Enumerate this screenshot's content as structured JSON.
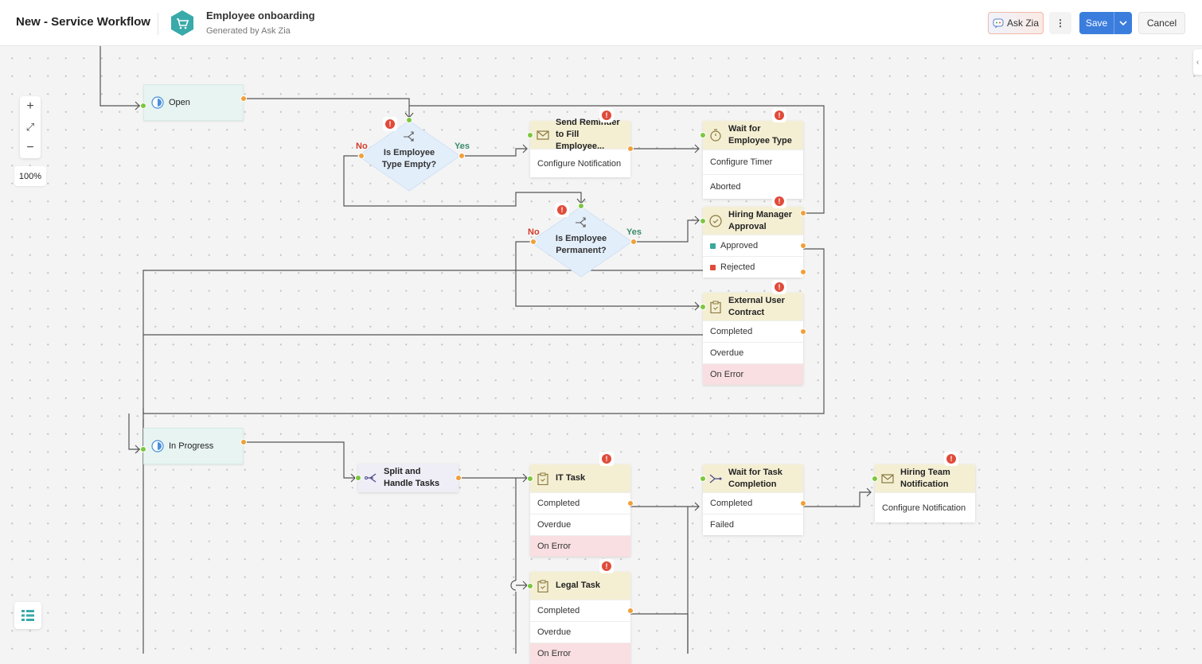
{
  "header": {
    "title": "New - Service Workflow",
    "workflow_name": "Employee onboarding",
    "workflow_subtitle": "Generated by Ask Zia",
    "ask_zia": "Ask Zia",
    "more": "⋮",
    "save": "Save",
    "save_dropdown": "⌄",
    "cancel": "Cancel"
  },
  "zoom": {
    "in": "+",
    "fit": "⤢",
    "out": "−",
    "level": "100%"
  },
  "colors": {
    "accent": "#3b7ddd",
    "state_bg": "#e7f4f1",
    "task_header": "#f4efd3",
    "error_row": "#f9dfe1",
    "decision_bg": "#e3eefb",
    "error_badge": "#e04b3a",
    "input_port": "#7cc73f",
    "output_port": "#f0a03a"
  },
  "states": [
    {
      "id": "open",
      "label": "Open"
    },
    {
      "id": "inprogress",
      "label": "In Progress"
    }
  ],
  "decisions": [
    {
      "id": "d1",
      "label": "Is Employee Type Empty?",
      "no": "No",
      "yes": "Yes"
    },
    {
      "id": "d2",
      "label": "Is Employee Permanent?",
      "no": "No",
      "yes": "Yes"
    }
  ],
  "nodes": [
    {
      "id": "reminder",
      "icon": "mail-icon",
      "title": "Send Reminder to Fill Employee...",
      "error": true,
      "rows": [
        "Configure Notification"
      ]
    },
    {
      "id": "wait",
      "icon": "timer-icon",
      "title": "Wait for Employee Type",
      "error": true,
      "rows": [
        "Configure Timer",
        "Aborted"
      ]
    },
    {
      "id": "hiring",
      "icon": "approval-icon",
      "title": "Hiring Manager Approval",
      "error": true,
      "rows": [
        "Approved",
        "Rejected"
      ]
    },
    {
      "id": "external",
      "icon": "clipboard-icon",
      "title": "External User Contract",
      "error": true,
      "rows": [
        "Completed",
        "Overdue",
        "On Error"
      ]
    },
    {
      "id": "split",
      "icon": "split-icon",
      "title": "Split and Handle Tasks",
      "error": false,
      "rows": []
    },
    {
      "id": "it",
      "icon": "clipboard-icon",
      "title": "IT Task",
      "error": true,
      "rows": [
        "Completed",
        "Overdue",
        "On Error"
      ]
    },
    {
      "id": "waittask",
      "icon": "merge-icon",
      "title": "Wait for Task Completion",
      "error": false,
      "rows": [
        "Completed",
        "Failed"
      ]
    },
    {
      "id": "team",
      "icon": "mail-icon",
      "title": "Hiring Team Notification",
      "error": true,
      "rows": [
        "Configure Notification"
      ]
    },
    {
      "id": "legal",
      "icon": "clipboard-icon",
      "title": "Legal Task",
      "error": true,
      "rows": [
        "Completed",
        "Overdue",
        "On Error"
      ]
    }
  ]
}
